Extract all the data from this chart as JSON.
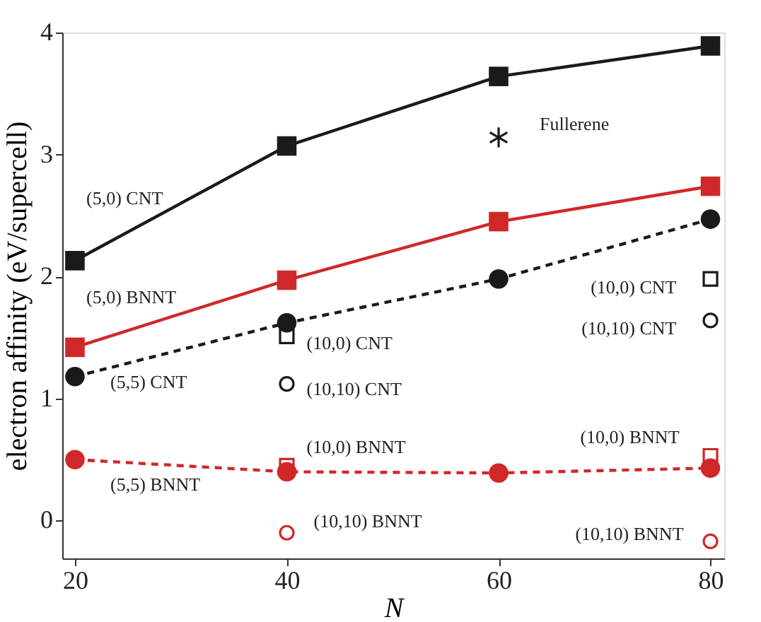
{
  "chart_data": {
    "type": "line",
    "xlabel": "N",
    "ylabel": "electron affinity (eV/supercell)",
    "xlim": [
      18.8,
      81.3
    ],
    "xticks": [
      20,
      40,
      60,
      80
    ],
    "ylim": [
      -0.31,
      4
    ],
    "yticks": [
      0,
      1,
      2,
      3,
      4
    ],
    "grid": false,
    "series": [
      {
        "type": "line",
        "color": "#1a1a1a",
        "marker": "square",
        "line_style": "solid",
        "x": [
          20,
          40,
          60,
          80
        ],
        "values": [
          2.13,
          3.07,
          3.64,
          3.89
        ]
      },
      {
        "type": "line",
        "color": "#d02828",
        "marker": "square",
        "line_style": "solid",
        "x": [
          20,
          40,
          60,
          80
        ],
        "values": [
          1.42,
          1.97,
          2.45,
          2.74
        ]
      },
      {
        "type": "line",
        "color": "#1a1a1a",
        "marker": "circle",
        "line_style": "dashed",
        "x": [
          20,
          40,
          60,
          80
        ],
        "values": [
          1.18,
          1.62,
          1.98,
          2.47
        ]
      },
      {
        "type": "line",
        "color": "#d02828",
        "marker": "circle",
        "line_style": "dashed",
        "x": [
          20,
          40,
          60,
          80
        ],
        "values": [
          0.5,
          0.4,
          0.39,
          0.43
        ]
      },
      {
        "type": "scatter",
        "color": "#1a1a1a",
        "marker": "square",
        "x": [
          40,
          80
        ],
        "values": [
          1.51,
          1.98
        ]
      },
      {
        "type": "scatter",
        "color": "#1a1a1a",
        "marker": "circle",
        "x": [
          40,
          80
        ],
        "values": [
          1.12,
          1.64
        ]
      },
      {
        "type": "scatter",
        "color": "#d02828",
        "marker": "square",
        "x": [
          40,
          80
        ],
        "values": [
          0.45,
          0.53
        ]
      },
      {
        "type": "scatter",
        "color": "#d02828",
        "marker": "circle",
        "x": [
          40,
          80
        ],
        "values": [
          -0.1,
          -0.17
        ]
      },
      {
        "type": "scatter",
        "color": "#1a1a1a",
        "marker": "cross",
        "x": [
          60
        ],
        "values": [
          3.14
        ]
      }
    ],
    "annotations": [
      {
        "text": "(5,0) CNT",
        "x": 20,
        "y": 2.13
      },
      {
        "text": "(5,0) BNNT",
        "x": 20,
        "y": 1.42
      },
      {
        "text": "(5,5) CNT",
        "x": 20,
        "y": 1.18
      },
      {
        "text": "(5,5) BNNT",
        "x": 20,
        "y": 0.5
      },
      {
        "text": "(10,0) CNT",
        "x": 40,
        "y": 1.51
      },
      {
        "text": "(10,10) CNT",
        "x": 40,
        "y": 1.12
      },
      {
        "text": "(10,0) BNNT",
        "x": 40,
        "y": 0.45
      },
      {
        "text": "(10,10) BNNT",
        "x": 40,
        "y": -0.1
      },
      {
        "text": "(10,0) CNT",
        "x": 80,
        "y": 1.98
      },
      {
        "text": "(10,10) CNT",
        "x": 80,
        "y": 1.64
      },
      {
        "text": "(10,0) BNNT",
        "x": 80,
        "y": 0.53
      },
      {
        "text": "(10,10) BNNT",
        "x": 80,
        "y": -0.17
      },
      {
        "text": "Fullerene",
        "x": 60,
        "y": 3.14
      }
    ]
  }
}
